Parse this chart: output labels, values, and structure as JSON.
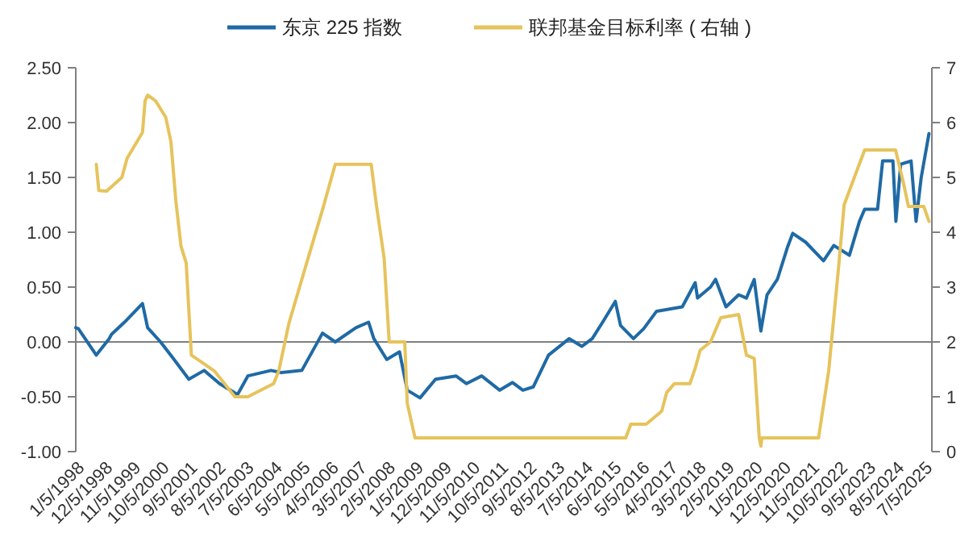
{
  "chart_data": {
    "type": "line",
    "legend": "top",
    "grid": false,
    "marker": "none",
    "xlim": [
      "1998-01-01",
      "2025-10-05"
    ],
    "xticks": [
      {
        "value": "1998-01-05",
        "label": "1/5/1998"
      },
      {
        "value": "1998-12-05",
        "label": "12/5/1998"
      },
      {
        "value": "1999-11-05",
        "label": "11/5/1999"
      },
      {
        "value": "2000-10-05",
        "label": "10/5/2000"
      },
      {
        "value": "2001-09-05",
        "label": "9/5/2001"
      },
      {
        "value": "2002-08-05",
        "label": "8/5/2002"
      },
      {
        "value": "2003-07-05",
        "label": "7/5/2003"
      },
      {
        "value": "2004-06-05",
        "label": "6/5/2004"
      },
      {
        "value": "2005-05-05",
        "label": "5/5/2005"
      },
      {
        "value": "2006-04-05",
        "label": "4/5/2006"
      },
      {
        "value": "2007-03-05",
        "label": "3/5/2007"
      },
      {
        "value": "2008-02-05",
        "label": "2/5/2008"
      },
      {
        "value": "2009-01-05",
        "label": "1/5/2009"
      },
      {
        "value": "2009-12-05",
        "label": "12/5/2009"
      },
      {
        "value": "2010-11-05",
        "label": "11/5/2010"
      },
      {
        "value": "2011-10-05",
        "label": "10/5/2011"
      },
      {
        "value": "2012-09-05",
        "label": "9/5/2012"
      },
      {
        "value": "2013-08-05",
        "label": "8/5/2013"
      },
      {
        "value": "2014-07-05",
        "label": "7/5/2014"
      },
      {
        "value": "2015-06-05",
        "label": "6/5/2015"
      },
      {
        "value": "2016-05-05",
        "label": "5/5/2016"
      },
      {
        "value": "2017-04-05",
        "label": "4/5/2017"
      },
      {
        "value": "2018-03-05",
        "label": "3/5/2018"
      },
      {
        "value": "2019-02-05",
        "label": "2/5/2019"
      },
      {
        "value": "2020-01-05",
        "label": "1/5/2020"
      },
      {
        "value": "2020-12-05",
        "label": "12/5/2020"
      },
      {
        "value": "2021-11-05",
        "label": "11/5/2021"
      },
      {
        "value": "2022-10-05",
        "label": "10/5/2022"
      },
      {
        "value": "2023-09-05",
        "label": "9/5/2023"
      },
      {
        "value": "2024-08-05",
        "label": "8/5/2024"
      },
      {
        "value": "2025-07-05",
        "label": "7/5/2025"
      }
    ],
    "ylim": [
      -1,
      2.5
    ],
    "yticks": [
      {
        "value": -1,
        "label": "-1.00"
      },
      {
        "value": -0.5,
        "label": "-0.50"
      },
      {
        "value": 0,
        "label": "0.00"
      },
      {
        "value": 0.5,
        "label": "0.50"
      },
      {
        "value": 1,
        "label": "1.00"
      },
      {
        "value": 1.5,
        "label": "1.50"
      },
      {
        "value": 2,
        "label": "2.00"
      },
      {
        "value": 2.5,
        "label": "2.50"
      }
    ],
    "y2lim": [
      0,
      7
    ],
    "y2ticks": [
      0,
      1,
      2,
      3,
      4,
      5,
      6,
      7
    ],
    "ref_lines": [
      {
        "axis": "y",
        "value": 0,
        "color": "#808080"
      }
    ],
    "series": [
      {
        "name": "东京 225 指数",
        "color": "#1f6aa5",
        "x": [
          "1998-01",
          "1998-02",
          "1998-09",
          "1999-02",
          "1999-03",
          "1999-08",
          "2000-03",
          "2000-05",
          "2000-10",
          "2001-03",
          "2001-09",
          "2002-03",
          "2002-09",
          "2003-04",
          "2003-08",
          "2004-05",
          "2004-09",
          "2005-05",
          "2006-01",
          "2006-06",
          "2007-02",
          "2007-07",
          "2007-09",
          "2008-02",
          "2008-07",
          "2008-10",
          "2009-03",
          "2009-09",
          "2010-05",
          "2010-09",
          "2011-03",
          "2011-10",
          "2012-03",
          "2012-07",
          "2012-11",
          "2013-05",
          "2014-01",
          "2014-06",
          "2014-10",
          "2015-02",
          "2015-07",
          "2015-09",
          "2016-02",
          "2016-06",
          "2016-11",
          "2017-09",
          "2018-02",
          "2018-03",
          "2018-08",
          "2018-10",
          "2019-02",
          "2019-07",
          "2019-10",
          "2020-01",
          "2020-03-20",
          "2020-06",
          "2020-10",
          "2021-02",
          "2021-04",
          "2021-09",
          "2022-04",
          "2022-08",
          "2023-02",
          "2023-06",
          "2023-08",
          "2024-01",
          "2024-03",
          "2024-07",
          "2024-08-05",
          "2024-10",
          "2025-02",
          "2025-04",
          "2025-06",
          "2025-09"
        ],
        "values": [
          0.13,
          0.12,
          -0.12,
          0.03,
          0.07,
          0.18,
          0.35,
          0.13,
          0.0,
          -0.15,
          -0.34,
          -0.26,
          -0.38,
          -0.48,
          -0.31,
          -0.26,
          -0.28,
          -0.26,
          0.08,
          0.0,
          0.13,
          0.18,
          0.03,
          -0.16,
          -0.09,
          -0.44,
          -0.51,
          -0.34,
          -0.31,
          -0.38,
          -0.31,
          -0.44,
          -0.37,
          -0.44,
          -0.41,
          -0.12,
          0.03,
          -0.04,
          0.03,
          0.18,
          0.37,
          0.15,
          0.03,
          0.12,
          0.28,
          0.32,
          0.54,
          0.4,
          0.5,
          0.57,
          0.32,
          0.43,
          0.4,
          0.57,
          0.1,
          0.43,
          0.57,
          0.87,
          0.99,
          0.91,
          0.74,
          0.88,
          0.79,
          1.1,
          1.21,
          1.21,
          1.65,
          1.65,
          1.1,
          1.62,
          1.65,
          1.1,
          1.5,
          1.9
        ]
      },
      {
        "name": "联邦基金目标利率 ( 右轴 )",
        "color": "#e6c35c",
        "axis": "y2",
        "x": [
          "1998-09",
          "1998-10",
          "1999-01",
          "1999-07",
          "1999-09",
          "2000-03",
          "2000-04",
          "2000-05",
          "2000-08",
          "2000-12",
          "2001-02",
          "2001-04",
          "2001-06",
          "2001-08",
          "2001-10",
          "2002-07",
          "2003-03",
          "2003-08",
          "2004-06",
          "2004-08",
          "2004-12",
          "2005-08",
          "2006-01",
          "2006-06",
          "2007-08",
          "2007-10",
          "2008-01",
          "2008-02",
          "2008-03",
          "2008-09",
          "2008-10",
          "2009-01",
          "2015-11",
          "2016-01",
          "2016-07",
          "2017-01",
          "2017-03",
          "2017-06",
          "2017-12",
          "2018-02",
          "2018-04",
          "2018-08",
          "2018-12",
          "2019-07",
          "2019-10",
          "2020-01",
          "2020-03",
          "2020-03-20",
          "2020-04",
          "2022-02",
          "2022-06",
          "2022-10",
          "2022-12",
          "2023-04",
          "2023-08",
          "2024-08",
          "2024-11",
          "2025-01",
          "2025-07",
          "2025-09"
        ],
        "values": [
          5.24,
          4.76,
          4.75,
          5.0,
          5.35,
          5.82,
          6.4,
          6.5,
          6.4,
          6.1,
          5.65,
          4.56,
          3.74,
          3.44,
          1.76,
          1.47,
          1.0,
          1.0,
          1.24,
          1.47,
          2.35,
          3.62,
          4.41,
          5.24,
          5.24,
          4.5,
          3.53,
          2.74,
          2.0,
          2.0,
          0.88,
          0.25,
          0.25,
          0.5,
          0.5,
          0.74,
          1.08,
          1.24,
          1.24,
          1.52,
          1.85,
          2.0,
          2.44,
          2.5,
          1.76,
          1.7,
          0.25,
          0.1,
          0.25,
          0.25,
          1.47,
          3.44,
          4.5,
          5.0,
          5.5,
          5.5,
          4.91,
          4.47,
          4.47,
          4.2
        ]
      }
    ]
  }
}
